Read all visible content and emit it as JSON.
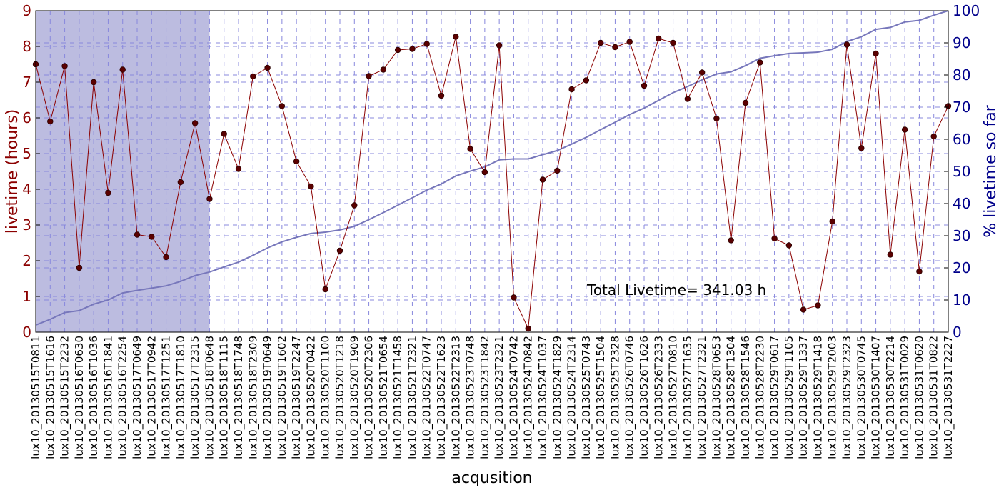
{
  "chart_data": {
    "type": "line",
    "xlabel": "acqusition",
    "ylabel_left": "livetime (hours)",
    "ylabel_right": "% livetime so far",
    "ylim_left": [
      0,
      9
    ],
    "ylim_right": [
      0,
      100
    ],
    "yticks_left": [
      0,
      1,
      2,
      3,
      4,
      5,
      6,
      7,
      8,
      9
    ],
    "yticks_right": [
      0,
      10,
      20,
      30,
      40,
      50,
      60,
      70,
      80,
      90,
      100
    ],
    "grid": true,
    "annotation": "Total Livetime= 341.03 h",
    "shaded_region": {
      "from_category": "lux10_20130515T0811",
      "to_category": "lux10_20130518T0648",
      "color": "#bcbce0"
    },
    "colors": {
      "livetime": "#8b0000",
      "cumulative": "#7777bb",
      "grid": "#8888dd",
      "left_axis": "#8b0000",
      "right_axis": "#00008b"
    },
    "categories": [
      "lux10_20130515T0811",
      "lux10_20130515T1616",
      "lux10_20130515T2232",
      "lux10_20130516T0630",
      "lux10_20130516T1036",
      "lux10_20130516T1841",
      "lux10_20130516T2254",
      "lux10_20130517T0649",
      "lux10_20130517T0942",
      "lux10_20130517T1251",
      "lux10_20130517T1810",
      "lux10_20130517T2315",
      "lux10_20130518T0648",
      "lux10_20130518T1115",
      "lux10_20130518T1748",
      "lux10_20130518T2309",
      "lux10_20130519T0649",
      "lux10_20130519T1602",
      "lux10_20130519T2247",
      "lux10_20130520T0422",
      "lux10_20130520T1100",
      "lux10_20130520T1218",
      "lux10_20130520T1909",
      "lux10_20130520T2306",
      "lux10_20130521T0654",
      "lux10_20130521T1458",
      "lux10_20130521T2321",
      "lux10_20130522T0747",
      "lux10_20130522T1623",
      "lux10_20130522T2313",
      "lux10_20130523T0748",
      "lux10_20130523T1842",
      "lux10_20130523T2321",
      "lux10_20130524T0742",
      "lux10_20130524T0842",
      "lux10_20130524T1037",
      "lux10_20130524T1829",
      "lux10_20130524T2314",
      "lux10_20130525T0743",
      "lux10_20130525T1504",
      "lux10_20130525T2328",
      "lux10_20130526T0746",
      "lux10_20130526T1626",
      "lux10_20130526T2333",
      "lux10_20130527T0810",
      "lux10_20130527T1635",
      "lux10_20130527T2321",
      "lux10_20130528T0653",
      "lux10_20130528T1304",
      "lux10_20130528T1546",
      "lux10_20130528T2230",
      "lux10_20130529T0617",
      "lux10_20130529T1105",
      "lux10_20130529T1337",
      "lux10_20130529T1418",
      "lux10_20130529T2003",
      "lux10_20130529T2323",
      "lux10_20130530T0745",
      "lux10_20130530T1407",
      "lux10_20130530T2214",
      "lux10_20130531T0029",
      "lux10_20130531T0620",
      "lux10_20130531T0822",
      "lux10_20130531T2227"
    ],
    "series": [
      {
        "name": "livetime (hours)",
        "axis": "left",
        "values": [
          7.5,
          5.9,
          7.45,
          1.8,
          7.0,
          3.9,
          7.35,
          2.73,
          2.67,
          2.1,
          4.2,
          5.85,
          3.73,
          5.55,
          4.57,
          7.16,
          7.4,
          6.33,
          4.78,
          4.08,
          1.2,
          2.28,
          3.55,
          7.17,
          7.35,
          7.9,
          7.93,
          8.07,
          6.62,
          8.27,
          5.13,
          4.48,
          8.03,
          0.97,
          0.1,
          4.27,
          4.52,
          6.8,
          7.05,
          8.1,
          7.98,
          8.13,
          6.9,
          8.22,
          8.1,
          6.53,
          7.27,
          5.98,
          2.57,
          6.42,
          7.55,
          2.62,
          2.43,
          0.63,
          0.75,
          3.1,
          8.05,
          5.15,
          7.8,
          2.17,
          5.67,
          1.7,
          5.48,
          6.33
        ]
      },
      {
        "name": "% livetime so far",
        "axis": "right",
        "values": [
          2.2,
          4.0,
          6.1,
          6.7,
          8.7,
          10.0,
          12.2,
          13.0,
          13.7,
          14.4,
          15.8,
          17.6,
          18.7,
          20.3,
          21.8,
          23.9,
          26.2,
          28.1,
          29.5,
          30.7,
          31.1,
          31.8,
          32.9,
          35.0,
          37.2,
          39.5,
          41.8,
          44.2,
          46.1,
          48.6,
          50.1,
          51.4,
          53.6,
          53.9,
          53.9,
          55.2,
          56.5,
          58.5,
          60.6,
          63.0,
          65.3,
          67.7,
          69.7,
          72.1,
          74.5,
          76.4,
          78.5,
          80.3,
          81.0,
          82.9,
          85.2,
          86.0,
          86.7,
          86.9,
          87.1,
          88.0,
          90.4,
          91.9,
          94.2,
          94.8,
          96.5,
          97.0,
          98.6,
          100.0
        ]
      }
    ]
  }
}
